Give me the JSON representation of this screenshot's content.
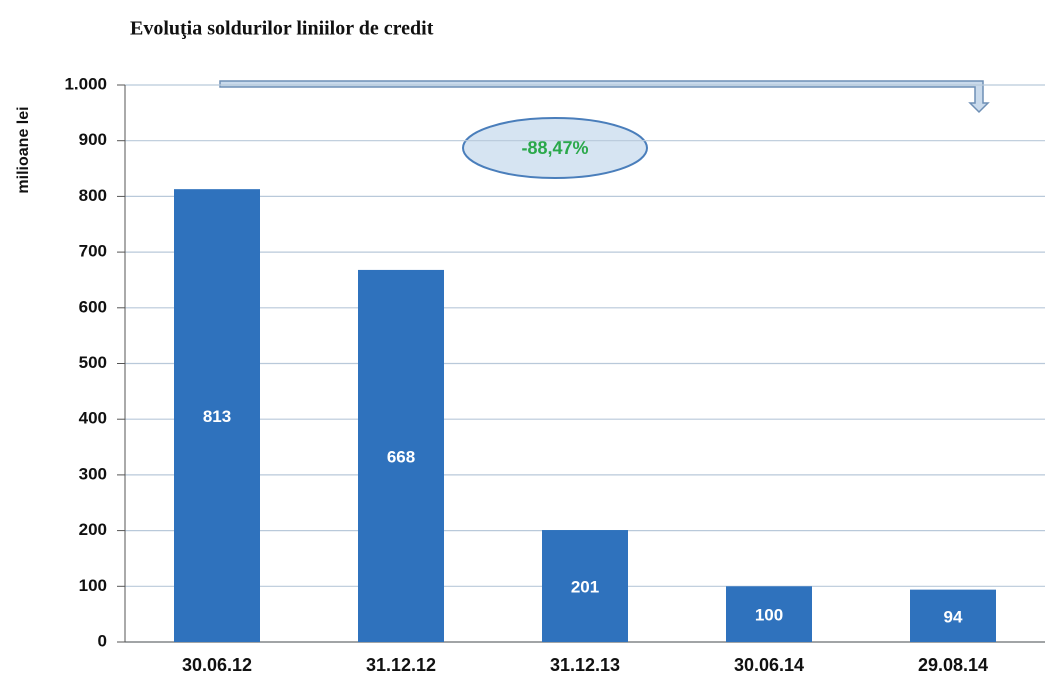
{
  "chart_data": {
    "type": "bar",
    "title": "Evoluţia soldurilor liniilor de credit",
    "y_label": "milioane lei",
    "annotation": "-88,47%",
    "categories": [
      "30.06.12",
      "31.12.12",
      "31.12.13",
      "30.06.14",
      "29.08.14"
    ],
    "values": [
      813,
      668,
      201,
      100,
      94
    ],
    "color": "#2f72bd",
    "ylim": [
      0,
      1000
    ],
    "yticks": [
      0,
      100,
      200,
      300,
      400,
      500,
      600,
      700,
      800,
      900,
      {
        "value": 1000,
        "label": "1.000"
      }
    ],
    "grid": true
  }
}
